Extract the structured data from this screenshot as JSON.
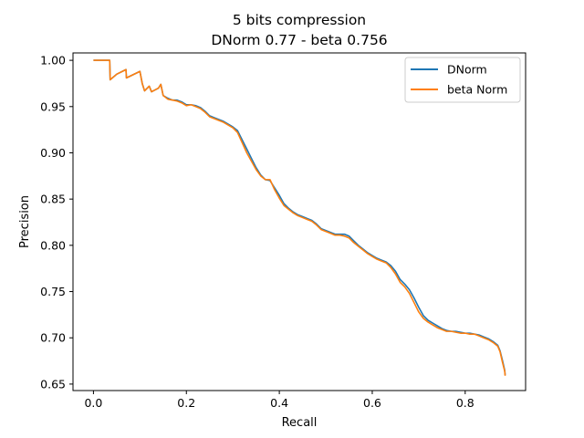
{
  "chart_data": {
    "type": "line",
    "title": "5 bits compression",
    "subtitle": "DNorm 0.77 - beta 0.756",
    "xlabel": "Recall",
    "ylabel": "Precision",
    "xlim": [
      -0.044,
      0.93
    ],
    "ylim": [
      0.643,
      1.008
    ],
    "xticks": [
      0.0,
      0.2,
      0.4,
      0.6,
      0.8
    ],
    "xtick_labels": [
      "0.0",
      "0.2",
      "0.4",
      "0.6",
      "0.8"
    ],
    "yticks": [
      0.65,
      0.7,
      0.75,
      0.8,
      0.85,
      0.9,
      0.95,
      1.0
    ],
    "ytick_labels": [
      "0.65",
      "0.70",
      "0.75",
      "0.80",
      "0.85",
      "0.90",
      "0.95",
      "1.00"
    ],
    "grid": false,
    "legend_position": "top-right",
    "series": [
      {
        "name": "DNorm",
        "color": "#1f77b4",
        "points": [
          [
            0.0,
            1.0
          ],
          [
            0.035,
            1.0
          ],
          [
            0.036,
            0.979
          ],
          [
            0.05,
            0.985
          ],
          [
            0.07,
            0.99
          ],
          [
            0.071,
            0.981
          ],
          [
            0.1,
            0.988
          ],
          [
            0.105,
            0.975
          ],
          [
            0.11,
            0.967
          ],
          [
            0.12,
            0.972
          ],
          [
            0.125,
            0.966
          ],
          [
            0.14,
            0.97
          ],
          [
            0.145,
            0.974
          ],
          [
            0.15,
            0.962
          ],
          [
            0.16,
            0.959
          ],
          [
            0.17,
            0.957
          ],
          [
            0.18,
            0.957
          ],
          [
            0.19,
            0.955
          ],
          [
            0.2,
            0.952
          ],
          [
            0.21,
            0.952
          ],
          [
            0.22,
            0.951
          ],
          [
            0.23,
            0.949
          ],
          [
            0.24,
            0.945
          ],
          [
            0.25,
            0.94
          ],
          [
            0.26,
            0.938
          ],
          [
            0.27,
            0.936
          ],
          [
            0.28,
            0.934
          ],
          [
            0.29,
            0.931
          ],
          [
            0.3,
            0.928
          ],
          [
            0.31,
            0.924
          ],
          [
            0.32,
            0.914
          ],
          [
            0.33,
            0.904
          ],
          [
            0.34,
            0.894
          ],
          [
            0.35,
            0.884
          ],
          [
            0.36,
            0.876
          ],
          [
            0.37,
            0.871
          ],
          [
            0.38,
            0.87
          ],
          [
            0.39,
            0.862
          ],
          [
            0.4,
            0.854
          ],
          [
            0.41,
            0.845
          ],
          [
            0.42,
            0.84
          ],
          [
            0.43,
            0.836
          ],
          [
            0.44,
            0.833
          ],
          [
            0.45,
            0.831
          ],
          [
            0.46,
            0.829
          ],
          [
            0.47,
            0.827
          ],
          [
            0.48,
            0.823
          ],
          [
            0.49,
            0.818
          ],
          [
            0.5,
            0.816
          ],
          [
            0.51,
            0.814
          ],
          [
            0.52,
            0.812
          ],
          [
            0.53,
            0.812
          ],
          [
            0.54,
            0.812
          ],
          [
            0.55,
            0.81
          ],
          [
            0.56,
            0.805
          ],
          [
            0.57,
            0.8
          ],
          [
            0.58,
            0.796
          ],
          [
            0.59,
            0.792
          ],
          [
            0.6,
            0.789
          ],
          [
            0.61,
            0.786
          ],
          [
            0.62,
            0.784
          ],
          [
            0.63,
            0.782
          ],
          [
            0.64,
            0.778
          ],
          [
            0.65,
            0.772
          ],
          [
            0.66,
            0.763
          ],
          [
            0.67,
            0.758
          ],
          [
            0.68,
            0.752
          ],
          [
            0.69,
            0.743
          ],
          [
            0.7,
            0.733
          ],
          [
            0.71,
            0.724
          ],
          [
            0.72,
            0.719
          ],
          [
            0.73,
            0.716
          ],
          [
            0.74,
            0.713
          ],
          [
            0.75,
            0.71
          ],
          [
            0.76,
            0.708
          ],
          [
            0.77,
            0.707
          ],
          [
            0.78,
            0.707
          ],
          [
            0.79,
            0.706
          ],
          [
            0.8,
            0.705
          ],
          [
            0.81,
            0.705
          ],
          [
            0.82,
            0.704
          ],
          [
            0.83,
            0.703
          ],
          [
            0.84,
            0.701
          ],
          [
            0.85,
            0.699
          ],
          [
            0.86,
            0.696
          ],
          [
            0.87,
            0.692
          ],
          [
            0.875,
            0.686
          ],
          [
            0.88,
            0.676
          ],
          [
            0.885,
            0.665
          ],
          [
            0.886,
            0.66
          ]
        ]
      },
      {
        "name": "beta Norm",
        "color": "#ff7f0e",
        "points": [
          [
            0.0,
            1.0
          ],
          [
            0.035,
            1.0
          ],
          [
            0.036,
            0.979
          ],
          [
            0.05,
            0.985
          ],
          [
            0.07,
            0.99
          ],
          [
            0.071,
            0.981
          ],
          [
            0.1,
            0.988
          ],
          [
            0.105,
            0.975
          ],
          [
            0.11,
            0.967
          ],
          [
            0.12,
            0.972
          ],
          [
            0.125,
            0.966
          ],
          [
            0.14,
            0.97
          ],
          [
            0.145,
            0.974
          ],
          [
            0.15,
            0.962
          ],
          [
            0.16,
            0.958
          ],
          [
            0.17,
            0.957
          ],
          [
            0.18,
            0.956
          ],
          [
            0.19,
            0.954
          ],
          [
            0.2,
            0.951
          ],
          [
            0.21,
            0.952
          ],
          [
            0.22,
            0.95
          ],
          [
            0.23,
            0.948
          ],
          [
            0.24,
            0.944
          ],
          [
            0.25,
            0.939
          ],
          [
            0.26,
            0.937
          ],
          [
            0.27,
            0.935
          ],
          [
            0.28,
            0.933
          ],
          [
            0.29,
            0.93
          ],
          [
            0.3,
            0.927
          ],
          [
            0.31,
            0.922
          ],
          [
            0.32,
            0.911
          ],
          [
            0.33,
            0.9
          ],
          [
            0.34,
            0.891
          ],
          [
            0.35,
            0.882
          ],
          [
            0.36,
            0.875
          ],
          [
            0.37,
            0.871
          ],
          [
            0.38,
            0.871
          ],
          [
            0.39,
            0.86
          ],
          [
            0.4,
            0.851
          ],
          [
            0.41,
            0.843
          ],
          [
            0.42,
            0.839
          ],
          [
            0.43,
            0.835
          ],
          [
            0.44,
            0.832
          ],
          [
            0.45,
            0.83
          ],
          [
            0.46,
            0.828
          ],
          [
            0.47,
            0.826
          ],
          [
            0.48,
            0.822
          ],
          [
            0.49,
            0.817
          ],
          [
            0.5,
            0.815
          ],
          [
            0.51,
            0.813
          ],
          [
            0.52,
            0.811
          ],
          [
            0.53,
            0.811
          ],
          [
            0.54,
            0.81
          ],
          [
            0.55,
            0.808
          ],
          [
            0.56,
            0.803
          ],
          [
            0.57,
            0.799
          ],
          [
            0.58,
            0.795
          ],
          [
            0.59,
            0.791
          ],
          [
            0.6,
            0.788
          ],
          [
            0.61,
            0.785
          ],
          [
            0.62,
            0.783
          ],
          [
            0.63,
            0.781
          ],
          [
            0.64,
            0.776
          ],
          [
            0.65,
            0.769
          ],
          [
            0.66,
            0.76
          ],
          [
            0.67,
            0.755
          ],
          [
            0.68,
            0.748
          ],
          [
            0.69,
            0.738
          ],
          [
            0.7,
            0.728
          ],
          [
            0.71,
            0.721
          ],
          [
            0.72,
            0.717
          ],
          [
            0.73,
            0.714
          ],
          [
            0.74,
            0.711
          ],
          [
            0.75,
            0.709
          ],
          [
            0.76,
            0.707
          ],
          [
            0.77,
            0.707
          ],
          [
            0.78,
            0.706
          ],
          [
            0.79,
            0.705
          ],
          [
            0.8,
            0.705
          ],
          [
            0.81,
            0.704
          ],
          [
            0.82,
            0.704
          ],
          [
            0.83,
            0.702
          ],
          [
            0.84,
            0.7
          ],
          [
            0.85,
            0.698
          ],
          [
            0.86,
            0.695
          ],
          [
            0.87,
            0.691
          ],
          [
            0.875,
            0.685
          ],
          [
            0.88,
            0.674
          ],
          [
            0.885,
            0.664
          ],
          [
            0.886,
            0.659
          ]
        ]
      }
    ]
  }
}
